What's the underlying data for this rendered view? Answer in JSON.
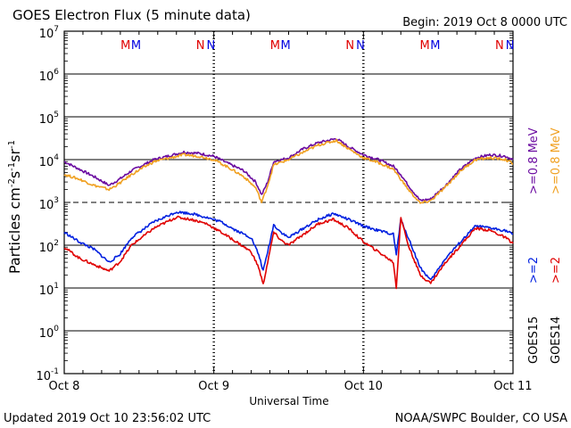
{
  "chart_data": {
    "type": "line",
    "title": "GOES Electron Flux (5 minute data)",
    "begin_label": "Begin: 2019 Oct 8 0000 UTC",
    "updated_label": "Updated 2019 Oct 10 23:56:02 UTC",
    "source_label": "NOAA/SWPC Boulder, CO USA",
    "xlabel": "Universal Time",
    "ylabel_html": [
      "Particles cm",
      "-2",
      "s",
      "-1",
      "sr",
      "-1"
    ],
    "xlim_days": [
      0,
      3
    ],
    "x_ticks": [
      {
        "day": 0,
        "label": "Oct 8"
      },
      {
        "day": 1,
        "label": "Oct 9"
      },
      {
        "day": 2,
        "label": "Oct 10"
      },
      {
        "day": 3,
        "label": "Oct 11"
      }
    ],
    "y_scale": "log",
    "ylim_exp": [
      -1,
      7
    ],
    "y_ticks": [
      {
        "exp": 7,
        "base": "10",
        "sup": "7"
      },
      {
        "exp": 6,
        "base": "10",
        "sup": "6"
      },
      {
        "exp": 5,
        "base": "10",
        "sup": "5"
      },
      {
        "exp": 4,
        "base": "10",
        "sup": "4"
      },
      {
        "exp": 3,
        "base": "10",
        "sup": "3"
      },
      {
        "exp": 2,
        "base": "10",
        "sup": "2"
      },
      {
        "exp": 1,
        "base": "10",
        "sup": "1"
      },
      {
        "exp": 0,
        "base": "10",
        "sup": "0"
      },
      {
        "exp": -1,
        "base": "10",
        "sup": "-1"
      }
    ],
    "threshold_exp": 3,
    "markers": [
      {
        "day": 0.41,
        "text": "M",
        "color": "#e00000"
      },
      {
        "day": 0.48,
        "text": "M",
        "color": "#0000e0"
      },
      {
        "day": 0.91,
        "text": "N",
        "color": "#e00000"
      },
      {
        "day": 0.98,
        "text": "N",
        "color": "#0000e0"
      },
      {
        "day": 1.41,
        "text": "M",
        "color": "#e00000"
      },
      {
        "day": 1.48,
        "text": "M",
        "color": "#0000e0"
      },
      {
        "day": 1.91,
        "text": "N",
        "color": "#e00000"
      },
      {
        "day": 1.98,
        "text": "N",
        "color": "#0000e0"
      },
      {
        "day": 2.41,
        "text": "M",
        "color": "#e00000"
      },
      {
        "day": 2.48,
        "text": "M",
        "color": "#0000e0"
      },
      {
        "day": 2.91,
        "text": "N",
        "color": "#e00000"
      },
      {
        "day": 2.98,
        "text": "N",
        "color": "#0000e0"
      }
    ],
    "legend": {
      "sat_left": "GOES15",
      "sat_right": "GOES14",
      "mev_left": ">=0.8 MeV",
      "mev_right": ">=0.8 MeV",
      "two_left": ">=2",
      "two_right": ">=2",
      "colors": {
        "g15_08": "#6a0aa0",
        "g14_08": "#f0a020",
        "g15_2": "#0020e0",
        "g14_2": "#e00000"
      }
    },
    "series": [
      {
        "key": "g15_08",
        "color": "#6a0aa0",
        "x": [
          0,
          0.1,
          0.2,
          0.3,
          0.37,
          0.45,
          0.6,
          0.8,
          0.9,
          1.0,
          1.1,
          1.2,
          1.28,
          1.32,
          1.36,
          1.4,
          1.5,
          1.6,
          1.7,
          1.82,
          1.9,
          2.0,
          2.1,
          2.2,
          2.25,
          2.3,
          2.38,
          2.45,
          2.55,
          2.65,
          2.75,
          2.85,
          2.95,
          3.0
        ],
        "y": [
          9000,
          6000,
          4000,
          2500,
          3500,
          5500,
          10000,
          15000,
          14000,
          12000,
          8000,
          5500,
          3000,
          1500,
          3000,
          9000,
          11000,
          18000,
          25000,
          31000,
          20000,
          13000,
          10000,
          7000,
          4500,
          2500,
          1100,
          1200,
          2500,
          6000,
          11000,
          13000,
          12000,
          10000
        ]
      },
      {
        "key": "g14_08",
        "color": "#f0a020",
        "x": [
          0,
          0.1,
          0.2,
          0.3,
          0.37,
          0.45,
          0.6,
          0.8,
          0.9,
          1.0,
          1.1,
          1.2,
          1.28,
          1.32,
          1.36,
          1.4,
          1.5,
          1.6,
          1.7,
          1.82,
          1.9,
          2.0,
          2.1,
          2.2,
          2.25,
          2.3,
          2.38,
          2.45,
          2.55,
          2.65,
          2.75,
          2.85,
          2.95,
          3.0
        ],
        "y": [
          4500,
          3500,
          2500,
          2000,
          2800,
          4500,
          9000,
          13000,
          12000,
          10000,
          6500,
          4000,
          2200,
          1000,
          2500,
          7500,
          10000,
          15000,
          22000,
          28000,
          18000,
          11000,
          8500,
          6000,
          3500,
          2000,
          950,
          1100,
          2300,
          5500,
          10000,
          11000,
          10000,
          8000
        ]
      },
      {
        "key": "g15_2",
        "color": "#0020e0",
        "x": [
          0,
          0.1,
          0.2,
          0.3,
          0.37,
          0.45,
          0.6,
          0.75,
          0.85,
          0.95,
          1.05,
          1.15,
          1.25,
          1.3,
          1.33,
          1.36,
          1.4,
          1.45,
          1.5,
          1.6,
          1.7,
          1.8,
          1.9,
          2.0,
          2.1,
          2.2,
          2.22,
          2.25,
          2.3,
          2.38,
          2.45,
          2.55,
          2.65,
          2.75,
          2.85,
          2.95,
          3.0
        ],
        "y": [
          200,
          120,
          80,
          40,
          60,
          150,
          350,
          600,
          550,
          450,
          350,
          220,
          150,
          60,
          25,
          70,
          300,
          200,
          150,
          250,
          400,
          550,
          400,
          280,
          220,
          180,
          60,
          400,
          150,
          30,
          15,
          50,
          120,
          280,
          250,
          220,
          180
        ]
      },
      {
        "key": "g14_2",
        "color": "#e00000",
        "x": [
          0,
          0.1,
          0.2,
          0.3,
          0.37,
          0.45,
          0.6,
          0.75,
          0.85,
          0.95,
          1.05,
          1.15,
          1.25,
          1.3,
          1.33,
          1.36,
          1.4,
          1.45,
          1.5,
          1.6,
          1.7,
          1.8,
          1.9,
          2.0,
          2.1,
          2.2,
          2.22,
          2.25,
          2.3,
          2.38,
          2.45,
          2.55,
          2.65,
          2.75,
          2.85,
          2.95,
          3.0
        ],
        "y": [
          90,
          50,
          35,
          25,
          40,
          100,
          250,
          450,
          400,
          320,
          200,
          120,
          70,
          30,
          12,
          40,
          200,
          130,
          100,
          180,
          320,
          400,
          250,
          120,
          70,
          40,
          10,
          450,
          100,
          20,
          13,
          40,
          100,
          250,
          220,
          150,
          110
        ]
      }
    ]
  }
}
